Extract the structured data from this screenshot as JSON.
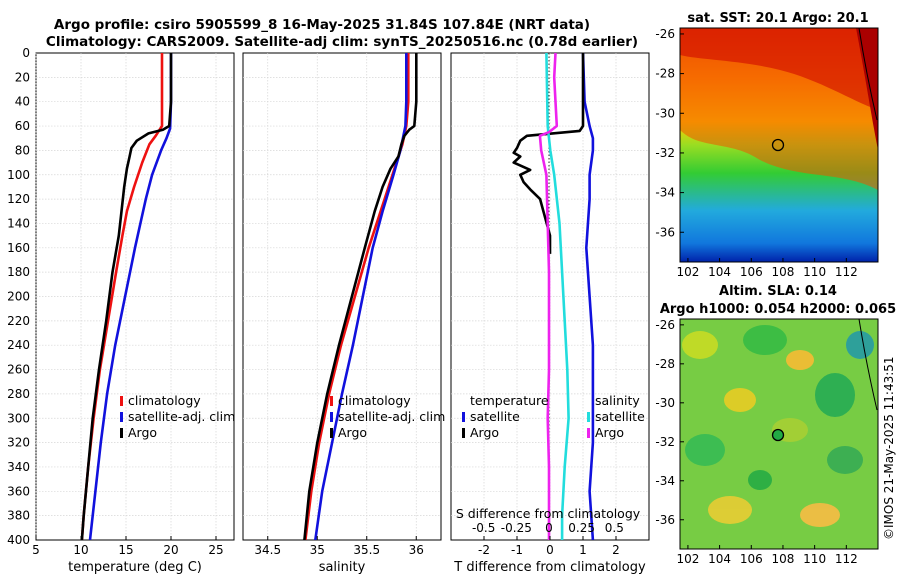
{
  "title": {
    "line1": "Argo profile: csiro 5905599_8 16-May-2025 31.84S 107.84E (NRT data)",
    "line2": "Climatology: CARS2009. Satellite-adj clim: synTS_20250516.nc (0.78d earlier)"
  },
  "sst_map_title": "sat. SST: 20.1 Argo: 20.1",
  "sla_map_title": [
    "Altim. SLA: 0.14",
    "Argo h1000: 0.054 h2000: 0.065"
  ],
  "watermark": "©IMOS 21-May-2025 11:43:51",
  "colors": {
    "climatology": "#ee1111",
    "satellite": "#1111dd",
    "argo": "#000000",
    "cyan": "#22dddd",
    "magenta": "#ee22ee"
  },
  "chart_data": [
    {
      "type": "line",
      "panel": "temperature",
      "xlabel": "temperature (deg C)",
      "ylabel": "",
      "xlim": [
        5,
        27
      ],
      "ylim": [
        400,
        0
      ],
      "xticks": [
        "5",
        "10",
        "15",
        "20",
        "25"
      ],
      "yticks": [
        "0",
        "20",
        "40",
        "60",
        "80",
        "100",
        "120",
        "140",
        "160",
        "180",
        "200",
        "220",
        "240",
        "260",
        "280",
        "300",
        "320",
        "340",
        "360",
        "380",
        "400"
      ],
      "legend": [
        "climatology",
        "satellite-adj. clim",
        "Argo"
      ],
      "series": [
        {
          "name": "climatology",
          "color": "#ee1111",
          "depth": [
            0,
            40,
            60,
            68,
            75,
            90,
            110,
            130,
            150,
            180,
            220,
            260,
            300,
            340,
            380,
            400
          ],
          "values": [
            19.0,
            19.0,
            19.0,
            18.3,
            17.6,
            16.8,
            15.9,
            15.1,
            14.6,
            13.9,
            13.0,
            12.1,
            11.4,
            10.8,
            10.3,
            10.1
          ]
        },
        {
          "name": "satellite-adj. clim",
          "color": "#1111dd",
          "depth": [
            0,
            40,
            62,
            70,
            80,
            100,
            120,
            140,
            160,
            200,
            240,
            280,
            320,
            360,
            400
          ],
          "values": [
            20.0,
            20.0,
            19.9,
            19.5,
            18.9,
            17.9,
            17.2,
            16.6,
            16.0,
            14.9,
            13.8,
            12.9,
            12.2,
            11.6,
            11.0
          ]
        },
        {
          "name": "Argo",
          "color": "#000000",
          "depth": [
            0,
            40,
            60,
            63,
            66,
            72,
            78,
            85,
            95,
            110,
            130,
            150,
            180,
            220,
            260,
            300,
            340,
            380,
            400
          ],
          "values": [
            20.0,
            20.0,
            19.8,
            19.1,
            17.5,
            16.2,
            15.6,
            15.4,
            15.1,
            14.8,
            14.5,
            14.2,
            13.5,
            12.8,
            12.0,
            11.3,
            10.8,
            10.3,
            10.1
          ]
        }
      ]
    },
    {
      "type": "line",
      "panel": "salinity",
      "xlabel": "salinity",
      "xlim": [
        34.25,
        36.25
      ],
      "ylim": [
        400,
        0
      ],
      "xticks": [
        "34.5",
        "35",
        "35.5",
        "36"
      ],
      "legend": [
        "climatology",
        "satellite-adj. clim",
        "Argo"
      ],
      "series": [
        {
          "name": "climatology",
          "color": "#ee1111",
          "depth": [
            0,
            40,
            60,
            75,
            90,
            120,
            160,
            200,
            240,
            280,
            320,
            360,
            400
          ],
          "values": [
            35.92,
            35.92,
            35.9,
            35.86,
            35.8,
            35.68,
            35.52,
            35.38,
            35.24,
            35.12,
            35.02,
            34.94,
            34.88
          ]
        },
        {
          "name": "satellite-adj. clim",
          "color": "#1111dd",
          "depth": [
            0,
            40,
            60,
            80,
            100,
            130,
            160,
            200,
            240,
            280,
            320,
            360,
            400
          ],
          "values": [
            35.9,
            35.9,
            35.89,
            35.84,
            35.77,
            35.66,
            35.56,
            35.46,
            35.36,
            35.25,
            35.15,
            35.05,
            34.98
          ]
        },
        {
          "name": "Argo",
          "color": "#000000",
          "depth": [
            0,
            40,
            60,
            63,
            68,
            75,
            85,
            95,
            110,
            130,
            160,
            200,
            240,
            280,
            320,
            360,
            400
          ],
          "values": [
            36.0,
            36.0,
            35.98,
            35.93,
            35.88,
            35.85,
            35.82,
            35.74,
            35.66,
            35.58,
            35.48,
            35.35,
            35.22,
            35.1,
            35.0,
            34.92,
            34.87
          ]
        }
      ]
    },
    {
      "type": "line",
      "panel": "difference",
      "xlabel": "T difference from climatology",
      "xlabel_top": "S difference from climatology",
      "xlim": [
        -3,
        3
      ],
      "ylim": [
        400,
        0
      ],
      "xticks": [
        "-2",
        "-1",
        "0",
        "1",
        "2"
      ],
      "top_ticks": [
        "-0.5",
        "-0.25",
        "0",
        "0.25",
        "0.5"
      ],
      "legend_left": [
        "temperature",
        "satellite",
        "Argo"
      ],
      "legend_right": [
        "salinity",
        "satellite",
        "Argo"
      ],
      "series": [
        {
          "name": "temperature satellite",
          "color": "#1111dd",
          "depth": [
            0,
            40,
            60,
            70,
            80,
            100,
            120,
            160,
            200,
            240,
            280,
            320,
            360,
            400
          ],
          "values": [
            1.0,
            1.05,
            1.2,
            1.3,
            1.3,
            1.2,
            1.2,
            1.1,
            1.2,
            1.3,
            1.3,
            1.3,
            1.2,
            1.3
          ]
        },
        {
          "name": "temperature Argo",
          "color": "#000000",
          "depth": [
            0,
            40,
            60,
            64,
            68,
            72,
            78,
            82,
            85,
            90,
            96,
            100,
            106,
            112,
            120,
            130,
            140,
            150,
            158,
            165
          ],
          "values": [
            1.0,
            1.0,
            1.0,
            0.9,
            -0.7,
            -0.9,
            -1.0,
            -1.1,
            -0.9,
            -1.1,
            -0.6,
            -0.9,
            -0.8,
            -0.6,
            -0.3,
            -0.2,
            -0.1,
            0.0,
            0.0,
            0.0
          ]
        },
        {
          "name": "salinity satellite",
          "color": "#22dddd",
          "depth": [
            0,
            60,
            80,
            100,
            140,
            180,
            220,
            260,
            300,
            340,
            380,
            400
          ],
          "values": [
            -0.02,
            -0.01,
            0.01,
            0.04,
            0.08,
            0.1,
            0.12,
            0.14,
            0.15,
            0.12,
            0.1,
            0.1
          ]
        },
        {
          "name": "salinity Argo",
          "color": "#ee22ee",
          "depth": [
            0,
            20,
            40,
            60,
            65,
            68,
            80,
            100,
            140,
            180,
            220,
            260,
            300,
            340,
            380,
            400
          ],
          "values": [
            0.05,
            0.04,
            0.05,
            0.06,
            0.0,
            -0.07,
            -0.06,
            -0.02,
            -0.01,
            0.0,
            0.0,
            0.0,
            -0.01,
            0.0,
            0.0,
            0.0
          ]
        }
      ]
    },
    {
      "type": "heatmap",
      "panel": "sst-map",
      "title": "sat. SST: 20.1 Argo: 20.1",
      "xticks": [
        "102",
        "104",
        "106",
        "108",
        "110",
        "112"
      ],
      "yticks": [
        "-26",
        "-28",
        "-30",
        "-32",
        "-34",
        "-36"
      ],
      "xlim": [
        101.5,
        114
      ],
      "ylim": [
        -37.5,
        -25.7
      ],
      "marker": {
        "lon": 107.84,
        "lat": -31.84
      }
    },
    {
      "type": "heatmap",
      "panel": "sla-map",
      "title": "Altim. SLA: 0.14",
      "xticks": [
        "102",
        "104",
        "106",
        "108",
        "110",
        "112"
      ],
      "yticks": [
        "-26",
        "-28",
        "-30",
        "-32",
        "-34",
        "-36"
      ],
      "xlim": [
        101.5,
        114
      ],
      "ylim": [
        -37.5,
        -25.7
      ],
      "marker": {
        "lon": 107.84,
        "lat": -31.84
      }
    }
  ]
}
